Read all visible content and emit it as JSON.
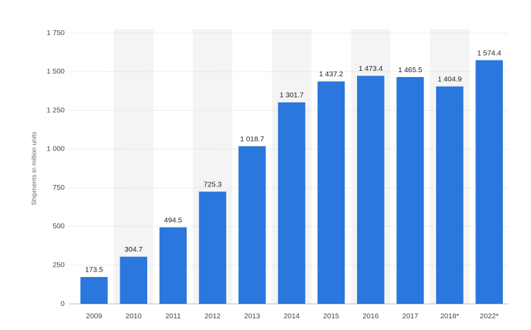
{
  "chart_data": {
    "type": "bar",
    "y_label": "Shipments in million units",
    "categories": [
      "2009",
      "2010",
      "2011",
      "2012",
      "2013",
      "2014",
      "2015",
      "2016",
      "2017",
      "2018*",
      "2022*"
    ],
    "values": [
      173.5,
      304.7,
      494.5,
      725.3,
      1018.7,
      1301.7,
      1437.2,
      1473.4,
      1465.5,
      1404.9,
      1574.4
    ],
    "value_labels": [
      "173.5",
      "304.7",
      "494.5",
      "725.3",
      "1 018.7",
      "1 301.7",
      "1 437.2",
      "1 473.4",
      "1 465.5",
      "1 404.9",
      "1 574.4"
    ],
    "color": "#2a77dd",
    "ylim": [
      0,
      1750
    ],
    "yticks": [
      0,
      250,
      500,
      750,
      {
        "value": 1000,
        "label": "1 000"
      },
      {
        "value": 1250,
        "label": "1 250"
      },
      {
        "value": 1500,
        "label": "1 500"
      },
      {
        "value": 1750,
        "label": "1 750"
      }
    ],
    "grid": true,
    "alternating_bands": true
  }
}
